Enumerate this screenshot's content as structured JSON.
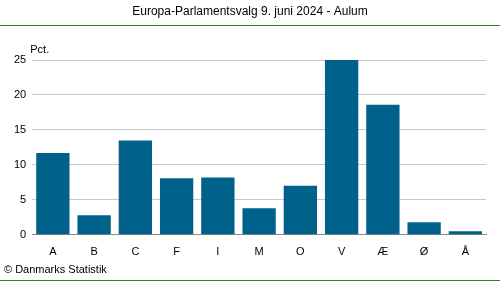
{
  "chart_data": {
    "type": "bar",
    "title": "Europa-Parlamentsvalg 9. juni 2024 - Aulum",
    "y_label": "Pct.",
    "annotation": "© Danmarks Statistik",
    "categories": [
      "A",
      "B",
      "C",
      "F",
      "I",
      "M",
      "O",
      "V",
      "Æ",
      "Ø",
      "Å"
    ],
    "values": [
      11.7,
      2.8,
      13.5,
      8.1,
      8.2,
      3.8,
      7.0,
      25.0,
      18.6,
      1.8,
      0.5
    ],
    "color": "#00628b",
    "ylim": [
      0,
      25
    ],
    "yticks": [
      0,
      5,
      10,
      15,
      20,
      25
    ],
    "grid": true
  }
}
